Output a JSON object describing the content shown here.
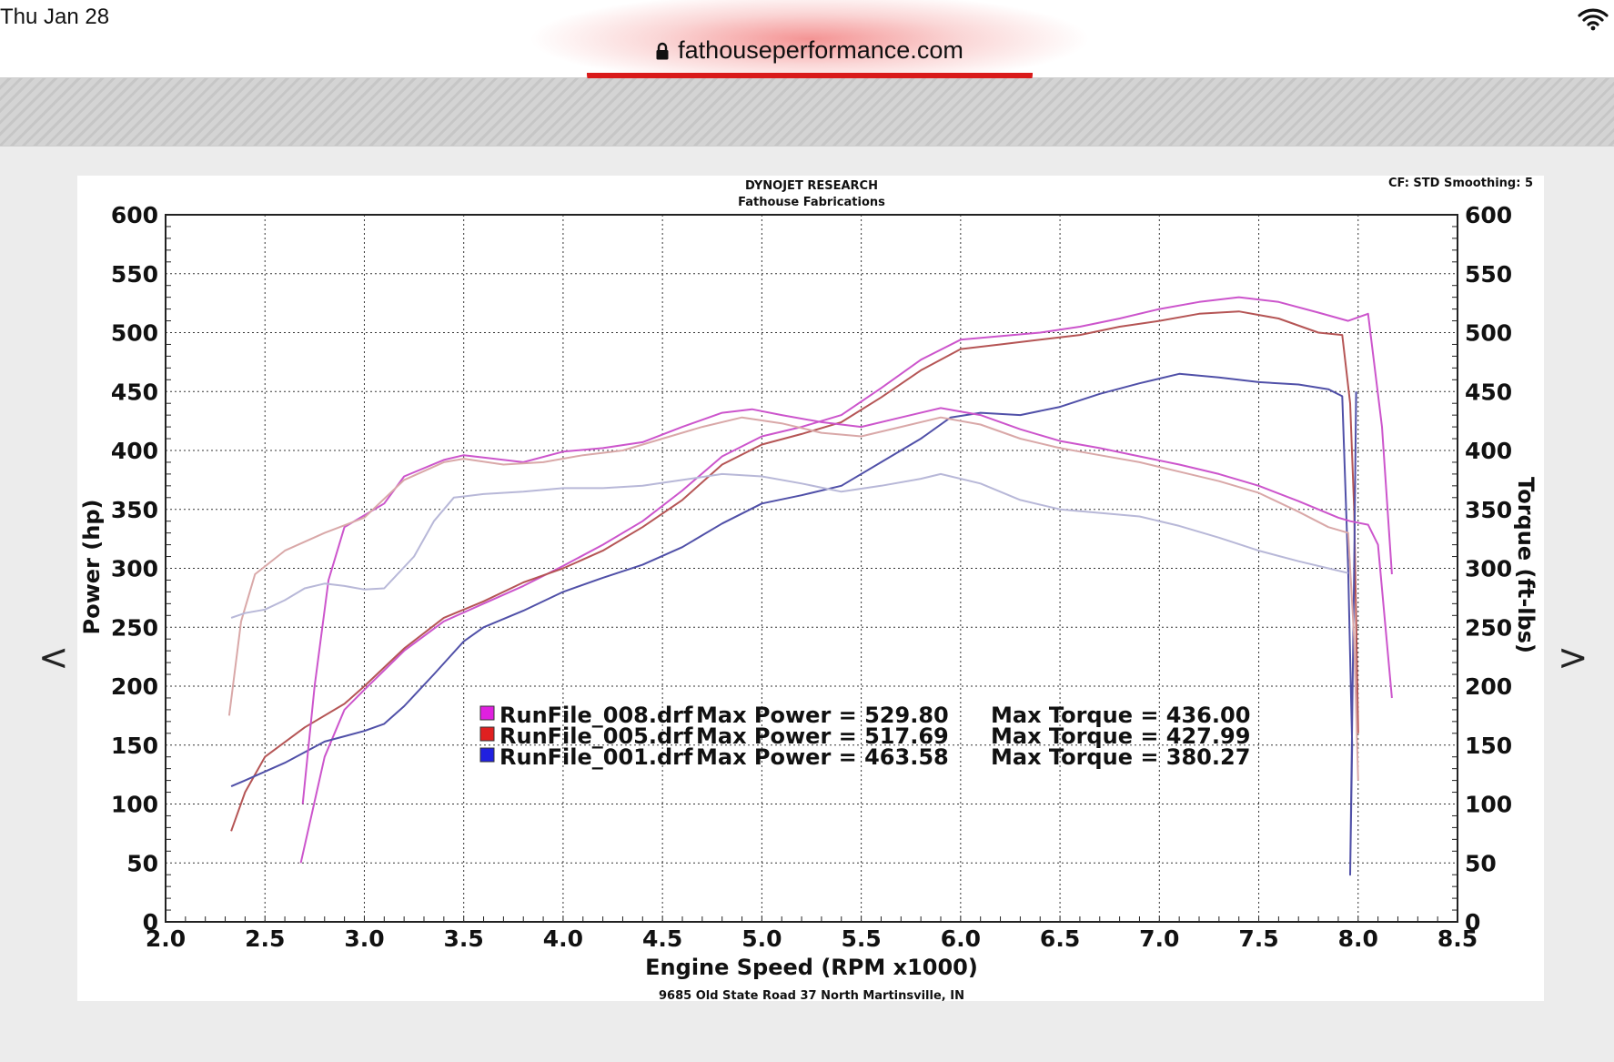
{
  "status_bar": {
    "time": "Thu Jan 28",
    "wifi_icon": "wifi-icon"
  },
  "browser": {
    "url": "fathouseperformance.com",
    "lock_icon": "lock-icon"
  },
  "nav": {
    "prev": "<",
    "next": ">"
  },
  "chart_data": {
    "type": "line",
    "title": "DYNOJET RESEARCH",
    "subtitle": "Fathouse Fabrications",
    "corner_note": "CF: STD  Smoothing: 5",
    "footer": "9685 Old State Road 37 North Martinsville, IN",
    "xlabel": "Engine Speed (RPM x1000)",
    "ylabel_left": "Power (hp)",
    "ylabel_right": "Torque (ft-lbs)",
    "xlim": [
      2.0,
      8.5
    ],
    "ylim": [
      0,
      600
    ],
    "x_ticks": [
      "2.0",
      "2.5",
      "3.0",
      "3.5",
      "4.0",
      "4.5",
      "5.0",
      "5.5",
      "6.0",
      "6.5",
      "7.0",
      "7.5",
      "8.0",
      "8.5"
    ],
    "y_ticks": [
      "0",
      "50",
      "100",
      "150",
      "200",
      "250",
      "300",
      "350",
      "400",
      "450",
      "500",
      "550",
      "600"
    ],
    "grid": true,
    "legend": [
      {
        "run": "RunFile_008.drf",
        "power_text": "Max Power = 529.80",
        "torque_text": "Max Torque = 436.00",
        "color": "#e020e0"
      },
      {
        "run": "RunFile_005.drf",
        "power_text": "Max Power = 517.69",
        "torque_text": "Max Torque = 427.99",
        "color": "#e02020"
      },
      {
        "run": "RunFile_001.drf",
        "power_text": "Max Power = 463.58",
        "torque_text": "Max Torque = 380.27",
        "color": "#2020e0"
      }
    ],
    "series": [
      {
        "name": "RunFile_008.drf",
        "measure": "power",
        "color": "#cc55cc",
        "points": [
          [
            2.68,
            50
          ],
          [
            2.8,
            140
          ],
          [
            2.9,
            180
          ],
          [
            3.0,
            197
          ],
          [
            3.2,
            230
          ],
          [
            3.4,
            255
          ],
          [
            3.6,
            270
          ],
          [
            3.8,
            285
          ],
          [
            4.0,
            302
          ],
          [
            4.2,
            320
          ],
          [
            4.4,
            340
          ],
          [
            4.6,
            366
          ],
          [
            4.8,
            395
          ],
          [
            5.0,
            412
          ],
          [
            5.2,
            420
          ],
          [
            5.4,
            430
          ],
          [
            5.6,
            453
          ],
          [
            5.8,
            477
          ],
          [
            6.0,
            494
          ],
          [
            6.2,
            497
          ],
          [
            6.4,
            500
          ],
          [
            6.6,
            505
          ],
          [
            6.8,
            512
          ],
          [
            7.0,
            520
          ],
          [
            7.2,
            526
          ],
          [
            7.4,
            530
          ],
          [
            7.6,
            526
          ],
          [
            7.8,
            517
          ],
          [
            7.95,
            510
          ],
          [
            8.05,
            516
          ],
          [
            8.12,
            420
          ],
          [
            8.17,
            295
          ]
        ]
      },
      {
        "name": "RunFile_005.drf",
        "measure": "power",
        "color": "#b55555",
        "points": [
          [
            2.33,
            77
          ],
          [
            2.4,
            110
          ],
          [
            2.5,
            140
          ],
          [
            2.7,
            165
          ],
          [
            2.9,
            185
          ],
          [
            3.0,
            200
          ],
          [
            3.2,
            232
          ],
          [
            3.4,
            258
          ],
          [
            3.6,
            272
          ],
          [
            3.8,
            288
          ],
          [
            4.0,
            300
          ],
          [
            4.2,
            315
          ],
          [
            4.4,
            335
          ],
          [
            4.6,
            358
          ],
          [
            4.8,
            388
          ],
          [
            5.0,
            405
          ],
          [
            5.2,
            414
          ],
          [
            5.4,
            424
          ],
          [
            5.6,
            445
          ],
          [
            5.8,
            468
          ],
          [
            6.0,
            486
          ],
          [
            6.2,
            490
          ],
          [
            6.4,
            494
          ],
          [
            6.6,
            498
          ],
          [
            6.8,
            505
          ],
          [
            7.0,
            510
          ],
          [
            7.2,
            516
          ],
          [
            7.4,
            518
          ],
          [
            7.6,
            512
          ],
          [
            7.8,
            500
          ],
          [
            7.92,
            498
          ],
          [
            7.96,
            440
          ],
          [
            7.98,
            350
          ],
          [
            8.0,
            160
          ]
        ]
      },
      {
        "name": "RunFile_001.drf",
        "measure": "power",
        "color": "#5050a8",
        "points": [
          [
            2.33,
            115
          ],
          [
            2.4,
            120
          ],
          [
            2.6,
            135
          ],
          [
            2.8,
            153
          ],
          [
            3.0,
            162
          ],
          [
            3.1,
            168
          ],
          [
            3.2,
            183
          ],
          [
            3.35,
            210
          ],
          [
            3.5,
            238
          ],
          [
            3.6,
            250
          ],
          [
            3.8,
            264
          ],
          [
            4.0,
            280
          ],
          [
            4.2,
            292
          ],
          [
            4.4,
            303
          ],
          [
            4.6,
            318
          ],
          [
            4.8,
            338
          ],
          [
            5.0,
            355
          ],
          [
            5.2,
            362
          ],
          [
            5.4,
            370
          ],
          [
            5.6,
            390
          ],
          [
            5.8,
            410
          ],
          [
            5.95,
            428
          ],
          [
            6.1,
            432
          ],
          [
            6.3,
            430
          ],
          [
            6.5,
            437
          ],
          [
            6.7,
            448
          ],
          [
            6.9,
            457
          ],
          [
            7.1,
            465
          ],
          [
            7.3,
            462
          ],
          [
            7.5,
            458
          ],
          [
            7.7,
            456
          ],
          [
            7.85,
            452
          ],
          [
            7.92,
            446
          ],
          [
            7.95,
            300
          ],
          [
            7.97,
            150
          ],
          [
            7.96,
            40
          ],
          [
            7.98,
            300
          ],
          [
            7.99,
            450
          ]
        ]
      },
      {
        "name": "RunFile_008.drf",
        "measure": "torque",
        "color": "#cc55cc",
        "points": [
          [
            2.69,
            100
          ],
          [
            2.75,
            200
          ],
          [
            2.82,
            290
          ],
          [
            2.9,
            335
          ],
          [
            3.0,
            345
          ],
          [
            3.1,
            355
          ],
          [
            3.2,
            378
          ],
          [
            3.4,
            392
          ],
          [
            3.5,
            396
          ],
          [
            3.6,
            394
          ],
          [
            3.8,
            390
          ],
          [
            4.0,
            399
          ],
          [
            4.2,
            402
          ],
          [
            4.4,
            407
          ],
          [
            4.6,
            420
          ],
          [
            4.8,
            432
          ],
          [
            4.95,
            435
          ],
          [
            5.1,
            430
          ],
          [
            5.3,
            424
          ],
          [
            5.5,
            420
          ],
          [
            5.7,
            428
          ],
          [
            5.9,
            436
          ],
          [
            6.1,
            430
          ],
          [
            6.3,
            418
          ],
          [
            6.5,
            408
          ],
          [
            6.7,
            402
          ],
          [
            6.9,
            395
          ],
          [
            7.1,
            388
          ],
          [
            7.3,
            380
          ],
          [
            7.5,
            370
          ],
          [
            7.7,
            357
          ],
          [
            7.9,
            343
          ],
          [
            7.96,
            340
          ],
          [
            8.05,
            337
          ],
          [
            8.1,
            320
          ],
          [
            8.17,
            190
          ]
        ]
      },
      {
        "name": "RunFile_005.drf",
        "measure": "torque",
        "color": "#d9a8a8",
        "points": [
          [
            2.32,
            175
          ],
          [
            2.38,
            255
          ],
          [
            2.45,
            295
          ],
          [
            2.6,
            315
          ],
          [
            2.8,
            330
          ],
          [
            3.0,
            343
          ],
          [
            3.2,
            375
          ],
          [
            3.4,
            390
          ],
          [
            3.5,
            393
          ],
          [
            3.7,
            388
          ],
          [
            3.9,
            390
          ],
          [
            4.1,
            396
          ],
          [
            4.3,
            400
          ],
          [
            4.5,
            410
          ],
          [
            4.7,
            420
          ],
          [
            4.9,
            428
          ],
          [
            5.1,
            423
          ],
          [
            5.3,
            415
          ],
          [
            5.5,
            412
          ],
          [
            5.7,
            420
          ],
          [
            5.9,
            428
          ],
          [
            6.1,
            422
          ],
          [
            6.3,
            410
          ],
          [
            6.5,
            402
          ],
          [
            6.7,
            396
          ],
          [
            6.9,
            390
          ],
          [
            7.1,
            382
          ],
          [
            7.3,
            374
          ],
          [
            7.5,
            364
          ],
          [
            7.7,
            348
          ],
          [
            7.85,
            335
          ],
          [
            7.95,
            330
          ],
          [
            7.98,
            240
          ],
          [
            8.0,
            120
          ]
        ]
      },
      {
        "name": "RunFile_001.drf",
        "measure": "torque",
        "color": "#b8b8d8",
        "points": [
          [
            2.33,
            258
          ],
          [
            2.4,
            262
          ],
          [
            2.5,
            265
          ],
          [
            2.6,
            273
          ],
          [
            2.7,
            283
          ],
          [
            2.8,
            287
          ],
          [
            2.9,
            285
          ],
          [
            3.0,
            282
          ],
          [
            3.1,
            283
          ],
          [
            3.25,
            310
          ],
          [
            3.35,
            340
          ],
          [
            3.45,
            360
          ],
          [
            3.6,
            363
          ],
          [
            3.8,
            365
          ],
          [
            4.0,
            368
          ],
          [
            4.2,
            368
          ],
          [
            4.4,
            370
          ],
          [
            4.6,
            375
          ],
          [
            4.8,
            380
          ],
          [
            5.0,
            378
          ],
          [
            5.2,
            372
          ],
          [
            5.4,
            365
          ],
          [
            5.6,
            370
          ],
          [
            5.8,
            376
          ],
          [
            5.9,
            380
          ],
          [
            6.1,
            372
          ],
          [
            6.3,
            358
          ],
          [
            6.5,
            350
          ],
          [
            6.7,
            347
          ],
          [
            6.9,
            344
          ],
          [
            7.1,
            336
          ],
          [
            7.3,
            326
          ],
          [
            7.5,
            315
          ],
          [
            7.7,
            306
          ],
          [
            7.85,
            300
          ],
          [
            7.95,
            296
          ]
        ]
      }
    ]
  }
}
